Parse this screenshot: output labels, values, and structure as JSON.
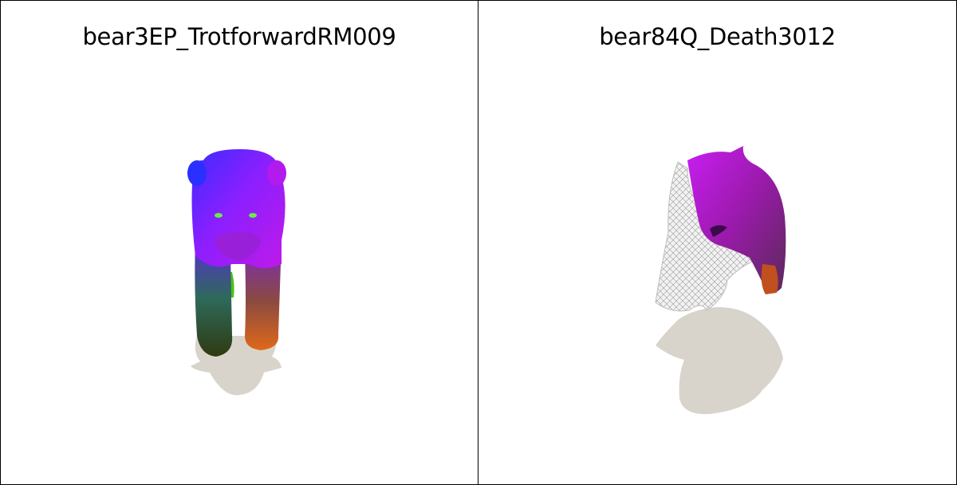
{
  "panels": [
    {
      "title": "bear3EP_TrotforwardRM009"
    },
    {
      "title": "bear84Q_Death3012"
    }
  ],
  "colors": {
    "shadow": "#d8d4cb",
    "border": "#000000",
    "background": "#ffffff"
  }
}
